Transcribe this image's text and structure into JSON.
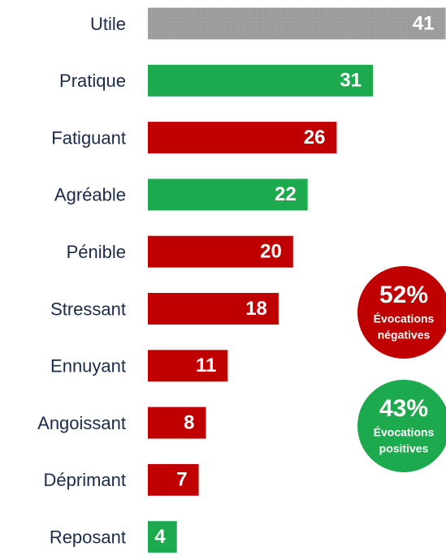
{
  "chart_data": {
    "type": "bar",
    "orientation": "horizontal",
    "categories": [
      "Utile",
      "Pratique",
      "Fatiguant",
      "Agréable",
      "Pénible",
      "Stressant",
      "Ennuyant",
      "Angoissant",
      "Déprimant",
      "Reposant"
    ],
    "values": [
      41,
      31,
      26,
      22,
      20,
      18,
      11,
      8,
      7,
      4
    ],
    "colors": [
      "#a3a3a3",
      "#1daa4f",
      "#c00000",
      "#1daa4f",
      "#c00000",
      "#c00000",
      "#c00000",
      "#c00000",
      "#c00000",
      "#1daa4f"
    ],
    "annotations": [
      {
        "value": 52,
        "value_label": "52%",
        "lines": [
          "Évocations",
          "négatives"
        ],
        "color": "#c00000"
      },
      {
        "value": 43,
        "value_label": "43%",
        "lines": [
          "Évocations",
          "positives"
        ],
        "color": "#1daa4f"
      }
    ]
  }
}
